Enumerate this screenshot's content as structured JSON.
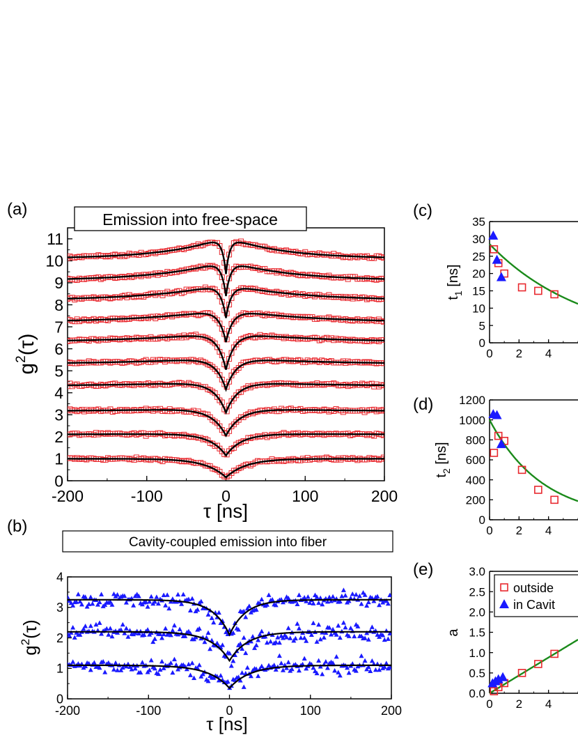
{
  "chart_data": [
    {
      "panel": "(a)",
      "type": "scatter",
      "title": "Emission into free-space",
      "xlabel": "τ [ns]",
      "ylabel_base": "g",
      "ylabel_sup": "2",
      "ylabel_arg": "(τ)",
      "xlim": [
        -200,
        200
      ],
      "ylim": [
        0,
        11.5
      ],
      "xticks": [
        "-200",
        "-100",
        "0",
        "100",
        "200"
      ],
      "yticks": [
        "0",
        "1",
        "2",
        "3",
        "4",
        "5",
        "6",
        "7",
        "8",
        "9",
        "10",
        "11"
      ],
      "data_marker": "open-square",
      "data_color": "#e8282e",
      "fit_color": "#000000",
      "series": [
        {
          "offset": 1.0,
          "dip_min": 0.15,
          "decay_tau": 25,
          "bunch_amp": 0.0,
          "bunch_tau": 150
        },
        {
          "offset": 2.1,
          "dip_min": 1.15,
          "decay_tau": 20,
          "bunch_amp": 0.05,
          "bunch_tau": 150
        },
        {
          "offset": 3.15,
          "dip_min": 2.05,
          "decay_tau": 18,
          "bunch_amp": 0.15,
          "bunch_tau": 140
        },
        {
          "offset": 4.3,
          "dip_min": 3.1,
          "decay_tau": 15,
          "bunch_amp": 0.2,
          "bunch_tau": 130
        },
        {
          "offset": 5.3,
          "dip_min": 4.15,
          "decay_tau": 13,
          "bunch_amp": 0.3,
          "bunch_tau": 120
        },
        {
          "offset": 6.3,
          "dip_min": 5.05,
          "decay_tau": 11,
          "bunch_amp": 0.45,
          "bunch_tau": 110
        },
        {
          "offset": 7.2,
          "dip_min": 6.3,
          "decay_tau": 9,
          "bunch_amp": 0.6,
          "bunch_tau": 100
        },
        {
          "offset": 8.2,
          "dip_min": 7.4,
          "decay_tau": 7,
          "bunch_amp": 0.75,
          "bunch_tau": 90
        },
        {
          "offset": 9.1,
          "dip_min": 8.4,
          "decay_tau": 6,
          "bunch_amp": 0.9,
          "bunch_tau": 80
        },
        {
          "offset": 10.1,
          "dip_min": 9.4,
          "decay_tau": 5,
          "bunch_amp": 1.0,
          "bunch_tau": 70
        }
      ]
    },
    {
      "panel": "(b)",
      "type": "scatter",
      "title": "Cavity-coupled emission into fiber",
      "xlabel": "τ [ns]",
      "ylabel_base": "g",
      "ylabel_sup": "2",
      "ylabel_arg": "(τ)",
      "xlim": [
        -200,
        200
      ],
      "ylim": [
        0,
        4
      ],
      "xticks": [
        "-200",
        "-100",
        "0",
        "100",
        "200"
      ],
      "yticks": [
        "0",
        "1",
        "2",
        "3",
        "4"
      ],
      "data_marker": "filled-triangle",
      "data_color": "#1a1aff",
      "fit_color": "#000000",
      "series": [
        {
          "offset": 1.1,
          "dip_min": 0.35,
          "decay_tau": 25,
          "noise": 0.45
        },
        {
          "offset": 2.2,
          "dip_min": 1.25,
          "decay_tau": 22,
          "noise": 0.5
        },
        {
          "offset": 3.25,
          "dip_min": 2.1,
          "decay_tau": 20,
          "noise": 0.45
        }
      ]
    },
    {
      "panel": "(c)",
      "type": "scatter",
      "ylabel": "t",
      "ylabel_sub": "1",
      "ylabel_unit": "[ns]",
      "xlim": [
        0,
        6
      ],
      "ylim": [
        0,
        35
      ],
      "xticks": [
        "0",
        "2",
        "4"
      ],
      "yticks": [
        "0",
        "5",
        "10",
        "15",
        "20",
        "25",
        "30",
        "35"
      ],
      "outside": {
        "x": [
          0.3,
          0.6,
          1.0,
          2.2,
          3.3,
          4.4
        ],
        "y": [
          27,
          23,
          20,
          16,
          15,
          14
        ]
      },
      "in_cavity": {
        "x": [
          0.25,
          0.5,
          0.8
        ],
        "y": [
          31,
          24,
          19
        ]
      },
      "fit": {
        "type": "exp",
        "a": 28.5,
        "b": 0.155
      }
    },
    {
      "panel": "(d)",
      "type": "scatter",
      "ylabel": "t",
      "ylabel_sub": "2",
      "ylabel_unit": "[ns]",
      "xlim": [
        0,
        6
      ],
      "ylim": [
        0,
        1200
      ],
      "xticks": [
        "0",
        "2",
        "4"
      ],
      "yticks": [
        "0",
        "200",
        "400",
        "600",
        "800",
        "1000",
        "1200"
      ],
      "outside": {
        "x": [
          0.3,
          0.6,
          1.0,
          2.2,
          3.3,
          4.4
        ],
        "y": [
          670,
          840,
          790,
          500,
          300,
          200
        ]
      },
      "in_cavity": {
        "x": [
          0.25,
          0.5,
          0.8
        ],
        "y": [
          1060,
          1050,
          760
        ]
      },
      "fit": {
        "type": "exp",
        "a": 1000,
        "b": 0.28
      }
    },
    {
      "panel": "(e)",
      "type": "scatter",
      "ylabel": "a",
      "xlim": [
        0,
        6
      ],
      "ylim": [
        0,
        3.0
      ],
      "xticks": [
        "0",
        "2",
        "4"
      ],
      "yticks": [
        "0.0",
        "0.5",
        "1.0",
        "1.5",
        "2.0",
        "2.5",
        "3.0"
      ],
      "outside": {
        "x": [
          0.3,
          0.6,
          1.0,
          2.2,
          3.3,
          4.4
        ],
        "y": [
          0.05,
          0.15,
          0.25,
          0.5,
          0.72,
          0.97
        ]
      },
      "in_cavity": {
        "x": [
          0.2,
          0.4,
          0.6,
          0.9
        ],
        "y": [
          0.25,
          0.3,
          0.35,
          0.4
        ]
      },
      "fit": {
        "type": "linear",
        "slope": 0.22,
        "intercept": 0.0
      },
      "legend": {
        "position": "top",
        "entries": [
          {
            "label": "outside",
            "marker": "open-square",
            "color": "#e8282e"
          },
          {
            "label": "in Cavit",
            "marker": "filled-triangle",
            "color": "#1a1aff"
          }
        ]
      }
    }
  ],
  "colors": {
    "outside": "#e8282e",
    "in_cavity": "#1a1aff",
    "fit_green": "#1a8a1a",
    "fit_black": "#000000"
  }
}
